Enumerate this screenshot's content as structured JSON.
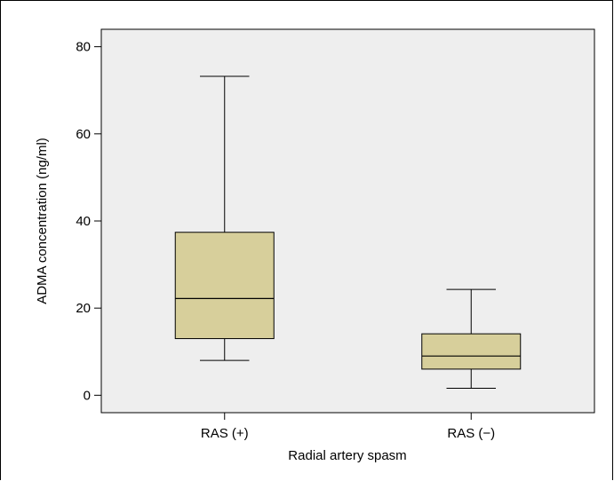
{
  "chart_data": {
    "type": "box",
    "xlabel": "Radial artery spasm",
    "ylabel": "ADMA concentration (ng/ml)",
    "ylim": [
      -4,
      84
    ],
    "yticks": [
      0,
      20,
      40,
      60,
      80
    ],
    "grid": false,
    "plot_background": "#eeeeee",
    "box_fill": "#d7cf9b",
    "categories": [
      "RAS (+)",
      "RAS (−)"
    ],
    "boxes": [
      {
        "category": "RAS (+)",
        "min": 8,
        "q1": 13,
        "median": 22.2,
        "q3": 37.4,
        "max": 73.2
      },
      {
        "category": "RAS (−)",
        "min": 1.6,
        "q1": 6,
        "median": 9,
        "q3": 14.1,
        "max": 24.3
      }
    ]
  }
}
